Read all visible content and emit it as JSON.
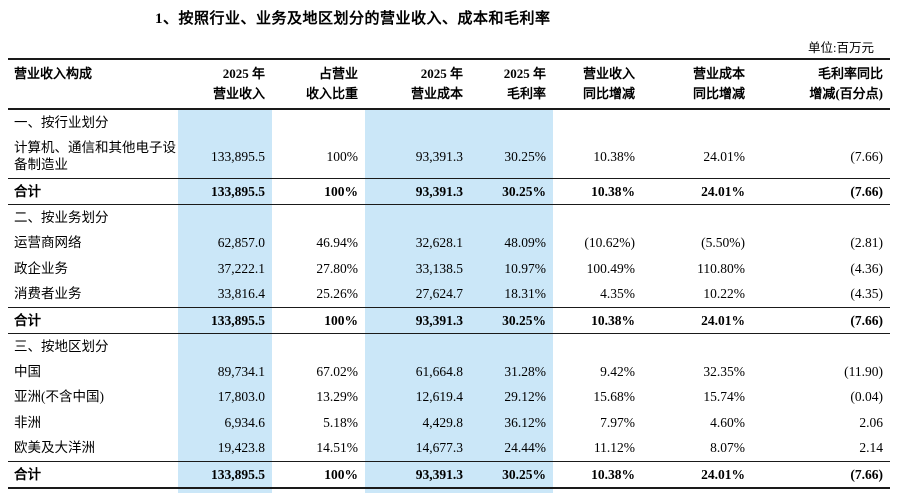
{
  "page": {
    "title": "1、按照行业、业务及地区划分的营业收入、成本和毛利率",
    "unit_note": "单位:百万元"
  },
  "colors": {
    "highlight": "#cbe7f8",
    "rule": "#1a1a1a"
  },
  "table": {
    "headers": [
      "营业收入构成",
      "2025 年\n营业收入",
      "占营业\n收入比重",
      "2025 年\n营业成本",
      "2025 年\n毛利率",
      "营业收入\n同比增减",
      "营业成本\n同比增减",
      "毛利率同比\n增减(百分点)"
    ],
    "rows": [
      {
        "type": "section",
        "label": "一、按行业划分",
        "values": [
          "",
          "",
          "",
          "",
          "",
          "",
          ""
        ]
      },
      {
        "type": "data",
        "label": "计算机、通信和其他电子设备制造业",
        "values": [
          "133,895.5",
          "100%",
          "93,391.3",
          "30.25%",
          "10.38%",
          "24.01%",
          "(7.66)"
        ]
      },
      {
        "type": "total",
        "label": "合计",
        "values": [
          "133,895.5",
          "100%",
          "93,391.3",
          "30.25%",
          "10.38%",
          "24.01%",
          "(7.66)"
        ]
      },
      {
        "type": "section",
        "label": "二、按业务划分",
        "values": [
          "",
          "",
          "",
          "",
          "",
          "",
          ""
        ]
      },
      {
        "type": "data",
        "label": "运营商网络",
        "values": [
          "62,857.0",
          "46.94%",
          "32,628.1",
          "48.09%",
          "(10.62%)",
          "(5.50%)",
          "(2.81)"
        ]
      },
      {
        "type": "data",
        "label": "政企业务",
        "values": [
          "37,222.1",
          "27.80%",
          "33,138.5",
          "10.97%",
          "100.49%",
          "110.80%",
          "(4.36)"
        ]
      },
      {
        "type": "data",
        "label": "消费者业务",
        "values": [
          "33,816.4",
          "25.26%",
          "27,624.7",
          "18.31%",
          "4.35%",
          "10.22%",
          "(4.35)"
        ]
      },
      {
        "type": "total",
        "label": "合计",
        "values": [
          "133,895.5",
          "100%",
          "93,391.3",
          "30.25%",
          "10.38%",
          "24.01%",
          "(7.66)"
        ]
      },
      {
        "type": "section",
        "label": "三、按地区划分",
        "values": [
          "",
          "",
          "",
          "",
          "",
          "",
          ""
        ]
      },
      {
        "type": "data",
        "label": "中国",
        "values": [
          "89,734.1",
          "67.02%",
          "61,664.8",
          "31.28%",
          "9.42%",
          "32.35%",
          "(11.90)"
        ]
      },
      {
        "type": "data",
        "label": "亚洲(不含中国)",
        "values": [
          "17,803.0",
          "13.29%",
          "12,619.4",
          "29.12%",
          "15.68%",
          "15.74%",
          "(0.04)"
        ]
      },
      {
        "type": "data",
        "label": "非洲",
        "values": [
          "6,934.6",
          "5.18%",
          "4,429.8",
          "36.12%",
          "7.97%",
          "4.60%",
          "2.06"
        ]
      },
      {
        "type": "data",
        "label": "欧美及大洋洲",
        "values": [
          "19,423.8",
          "14.51%",
          "14,677.3",
          "24.44%",
          "11.12%",
          "8.07%",
          "2.14"
        ]
      },
      {
        "type": "total",
        "label": "合计",
        "values": [
          "133,895.5",
          "100%",
          "93,391.3",
          "30.25%",
          "10.38%",
          "24.01%",
          "(7.66)"
        ]
      }
    ]
  }
}
